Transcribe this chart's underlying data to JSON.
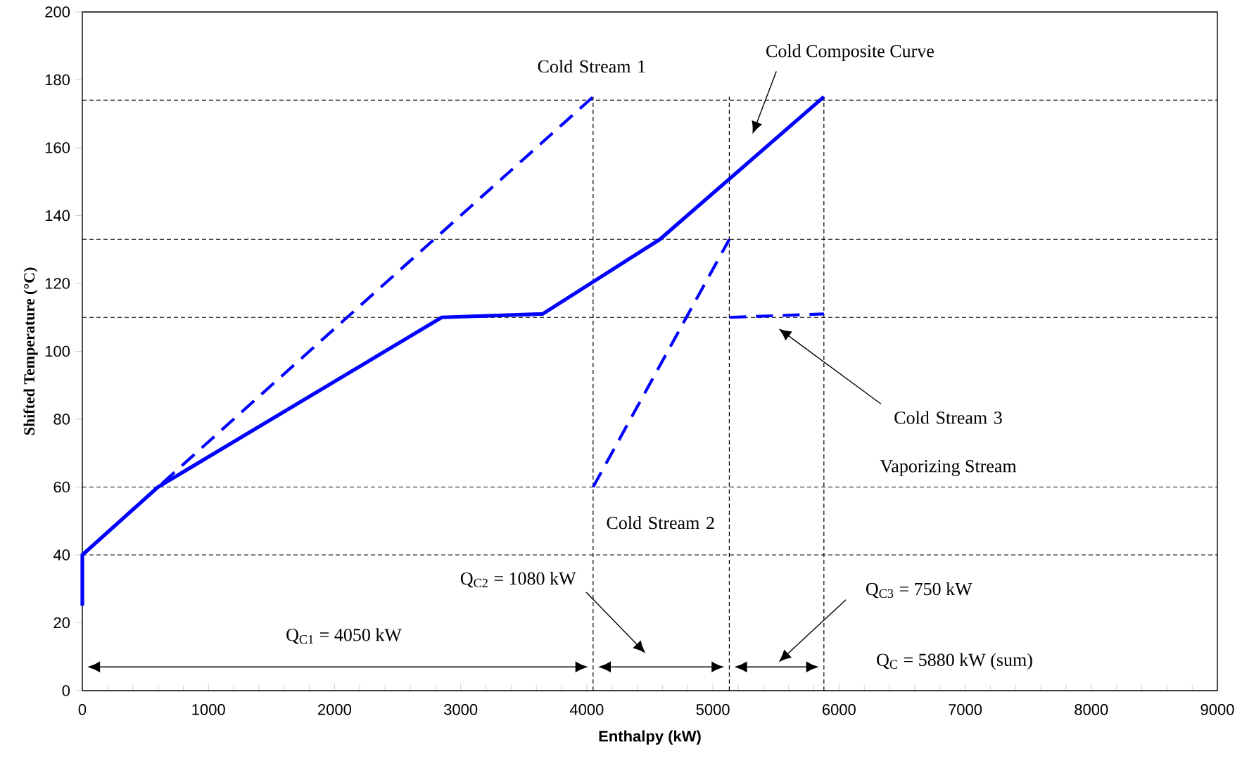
{
  "chart_data": {
    "type": "line",
    "xlabel": "Enthalpy (kW)",
    "ylabel": "Shifted Temperature (°C)",
    "xlim": [
      0,
      9000
    ],
    "ylim": [
      0,
      200
    ],
    "xticks": [
      0,
      1000,
      2000,
      3000,
      4000,
      5000,
      6000,
      7000,
      8000,
      9000
    ],
    "yticks": [
      0,
      20,
      40,
      60,
      80,
      100,
      120,
      140,
      160,
      180,
      200
    ],
    "series": [
      {
        "color": "#0000ff",
        "line_style": "solid",
        "x": [
          0,
          0,
          600,
          2850,
          3650,
          4580,
          5880
        ],
        "values": [
          25,
          40,
          60,
          110,
          111,
          133,
          175
        ]
      },
      {
        "color": "#0000ff",
        "line_style": "dashed",
        "x": [
          0,
          4050
        ],
        "values": [
          40,
          175
        ]
      },
      {
        "color": "#0000ff",
        "line_style": "dashed",
        "x": [
          4050,
          5130
        ],
        "values": [
          60,
          133
        ]
      },
      {
        "color": "#0000ff",
        "line_style": "dashed",
        "x": [
          5130,
          5880
        ],
        "values": [
          110,
          111
        ]
      }
    ],
    "ref_lines": [
      {
        "axis": "y",
        "value": 174,
        "color": "#000000",
        "line_style": "dashed"
      },
      {
        "axis": "y",
        "value": 133,
        "color": "#000000",
        "line_style": "dashed"
      },
      {
        "axis": "y",
        "value": 110,
        "color": "#000000",
        "line_style": "dashed"
      },
      {
        "axis": "y",
        "value": 60,
        "color": "#000000",
        "line_style": "dashed"
      },
      {
        "axis": "y",
        "value": 40,
        "color": "#000000",
        "line_style": "dashed"
      },
      {
        "axis": "x",
        "value": 4050,
        "color": "#000000",
        "line_style": "dashed"
      },
      {
        "axis": "x",
        "value": 5130,
        "color": "#000000",
        "line_style": "dashed"
      },
      {
        "axis": "x",
        "value": 5880,
        "color": "#000000",
        "line_style": "dashed"
      }
    ],
    "annotations": [
      "Cold Stream 1",
      "Cold Composite Curve",
      "Cold Stream 3",
      "Vaporizing Stream",
      "Cold Stream 2",
      "Q$_{C2}$ = 1080 kW",
      "Q$_{C3}$ = 750 kW",
      "Q$_{C1}$ = 4050 kW",
      "Q$_{C}$ = 5880 kW (sum)"
    ]
  }
}
